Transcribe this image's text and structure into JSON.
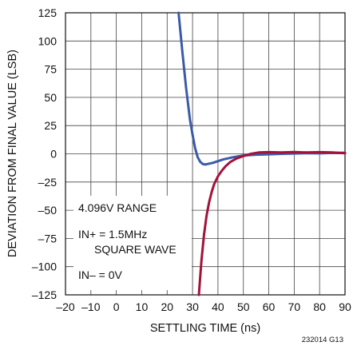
{
  "chart_data": {
    "type": "line",
    "xlabel": "SETTLING TIME (ns)",
    "ylabel": "DEVIATION FROM FINAL VALUE (LSB)",
    "xlim": [
      -20,
      90
    ],
    "ylim": [
      -125,
      125
    ],
    "x_ticks": [
      -20,
      -10,
      0,
      10,
      20,
      30,
      40,
      50,
      60,
      70,
      80,
      90
    ],
    "x_tick_labels": [
      "–20",
      "–10",
      "0",
      "10",
      "20",
      "30",
      "40",
      "50",
      "60",
      "70",
      "80",
      "90"
    ],
    "y_ticks": [
      125,
      100,
      75,
      50,
      25,
      0,
      -25,
      -50,
      -75,
      -100,
      -125
    ],
    "y_tick_labels": [
      "125",
      "100",
      "75",
      "50",
      "25",
      "0",
      "–25",
      "–50",
      "–75",
      "–100",
      "–125"
    ],
    "grid": true,
    "annotations": [
      {
        "label": "4.096V RANGE"
      },
      {
        "label": "IN+ = 1.5MHz"
      },
      {
        "label": "SQUARE WAVE"
      },
      {
        "label": "IN– = 0V"
      }
    ],
    "figure_code": "232014 G13",
    "series": [
      {
        "color": "#3b5aa8",
        "x": [
          24.5,
          26,
          27.5,
          29,
          30,
          31,
          32,
          33,
          34,
          35,
          36,
          38,
          40,
          42,
          45,
          48,
          50,
          55,
          60,
          65,
          70,
          75,
          80,
          85,
          90
        ],
        "y": [
          125,
          90,
          58,
          30,
          17,
          5,
          -3,
          -7,
          -9,
          -9.5,
          -9,
          -8,
          -6.5,
          -5,
          -3.5,
          -2.2,
          -1.5,
          -0.8,
          -0.4,
          0,
          0.3,
          0.6,
          0.4,
          0.8,
          1
        ]
      },
      {
        "color": "#a3123a",
        "x": [
          32.5,
          33.5,
          34.5,
          35.5,
          36.5,
          37.5,
          38.5,
          40,
          41.5,
          43,
          45,
          47.5,
          50,
          53,
          56,
          60,
          65,
          70,
          75,
          80,
          85,
          90
        ],
        "y": [
          -125,
          -95,
          -72,
          -55,
          -43,
          -34,
          -27,
          -20,
          -15,
          -11,
          -7,
          -4,
          -2,
          0,
          1.2,
          1.5,
          1.2,
          1.6,
          1.2,
          1.5,
          1.2,
          0.5
        ]
      }
    ]
  }
}
